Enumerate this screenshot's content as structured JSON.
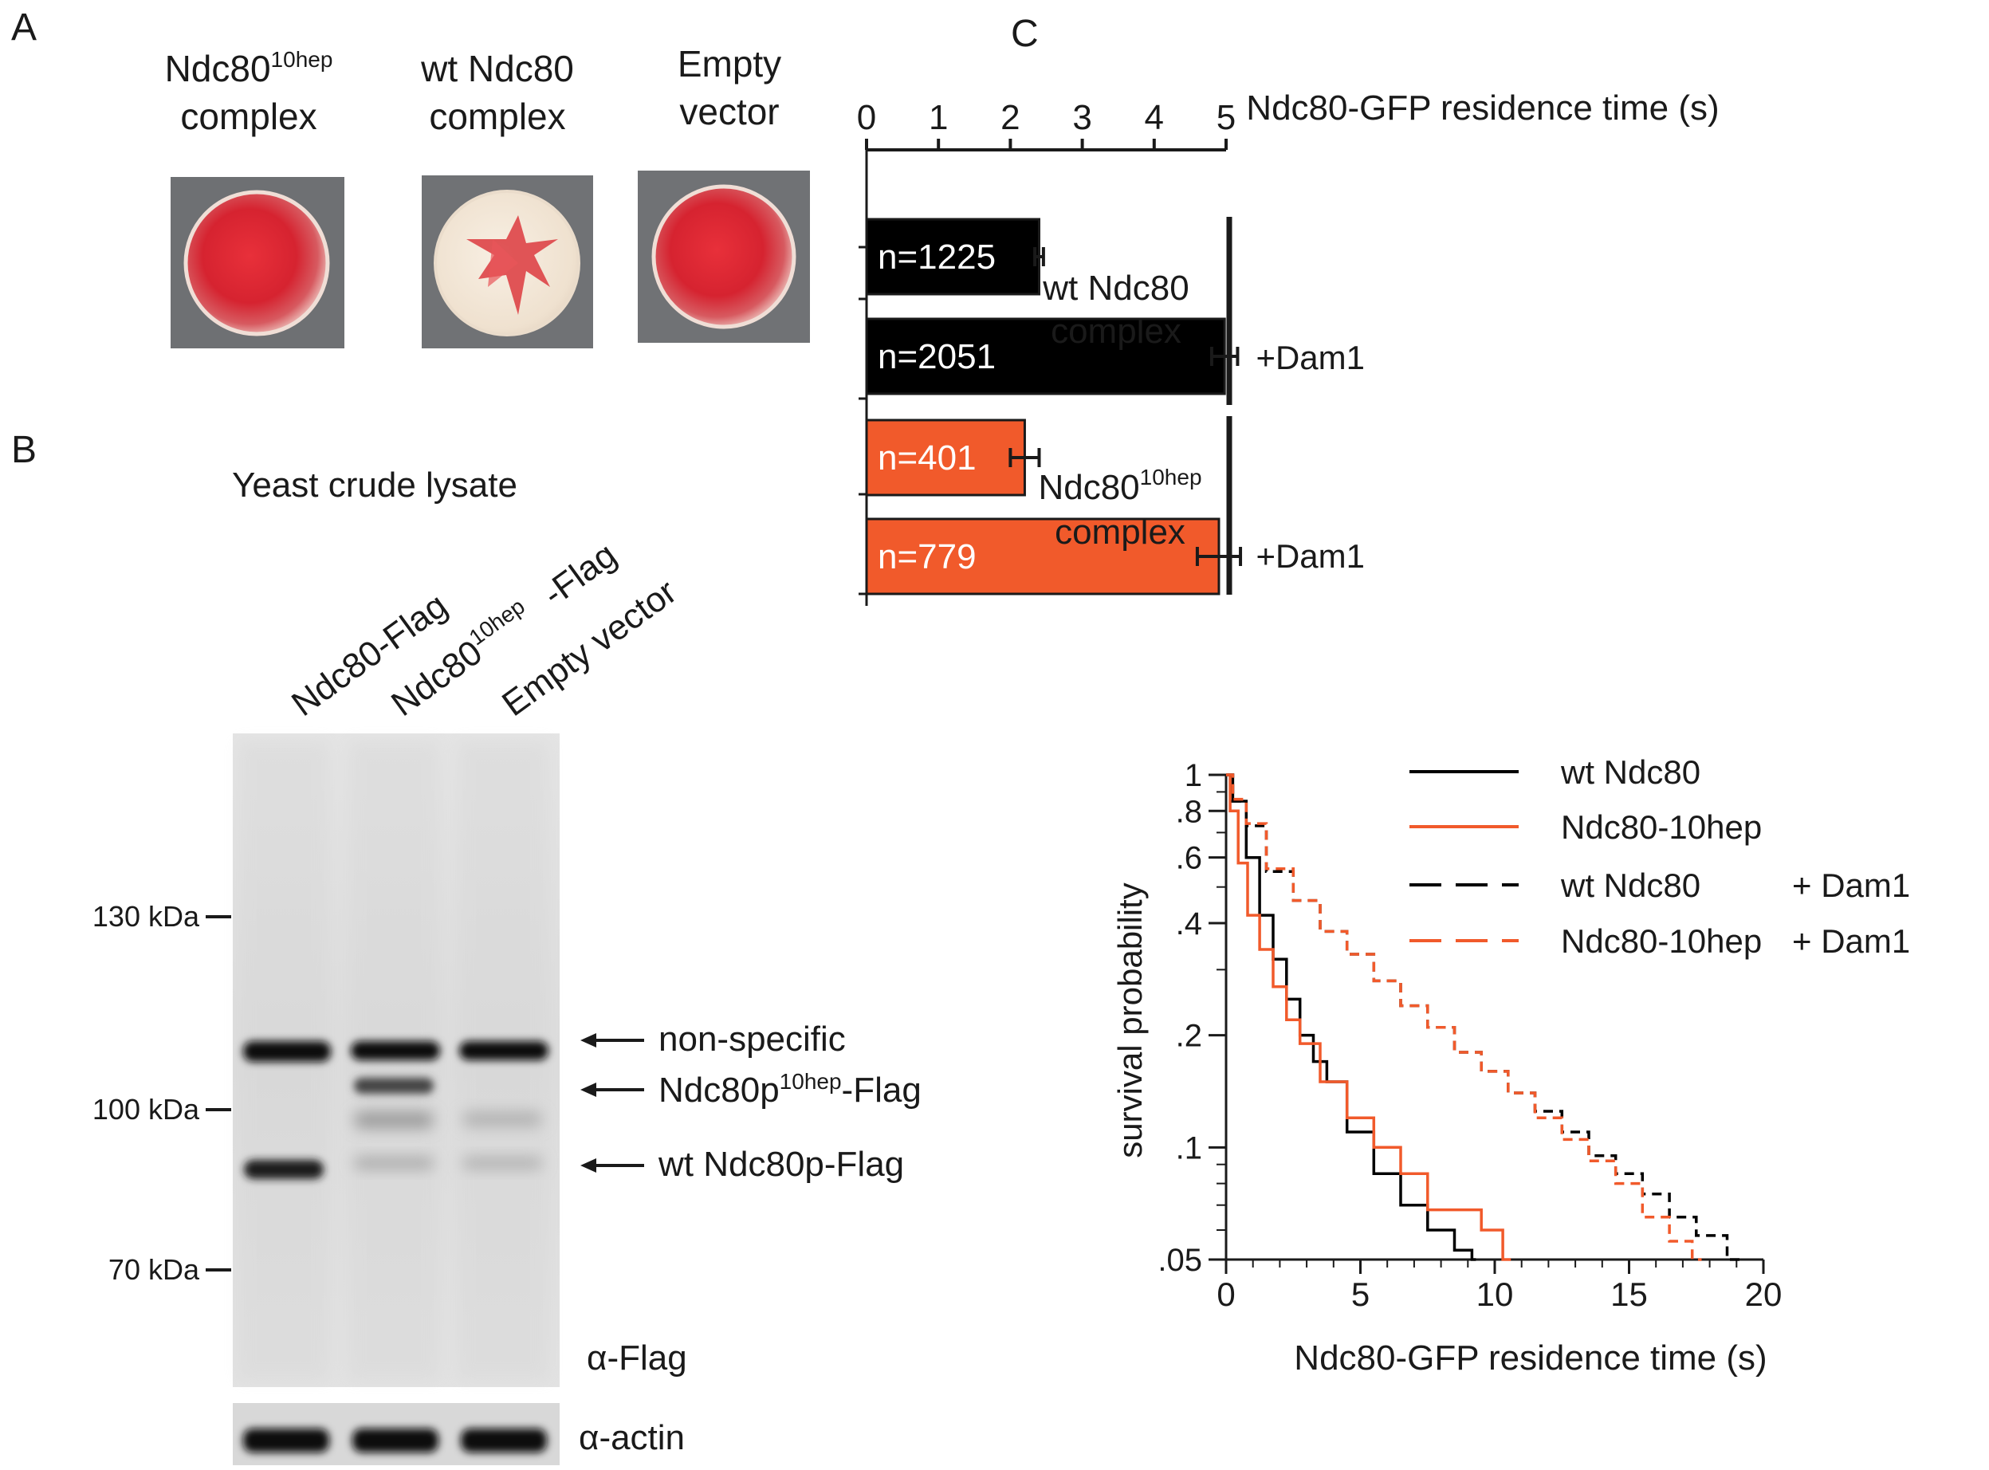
{
  "panels": {
    "a": {
      "letter": "A",
      "columns": [
        {
          "line1_base": "Ndc80",
          "line1_sup": "10hep",
          "line2": "complex",
          "colony_color": "#d8232f"
        },
        {
          "line1": "wt Ndc80",
          "line2": "complex",
          "colony_color": "#f3e6d4"
        },
        {
          "line1": "Empty",
          "line2": "vector",
          "colony_color": "#d42a30"
        }
      ]
    },
    "b": {
      "letter": "B",
      "title": "Yeast crude lysate",
      "lanes": [
        {
          "text": "Ndc80-Flag"
        },
        {
          "base": "Ndc80",
          "sup": "10hep",
          "suffix": "-Flag"
        },
        {
          "text": "Empty vector"
        }
      ],
      "markers": [
        "130 kDa",
        "100 kDa",
        "70 kDa"
      ],
      "band_labels": {
        "nonspecific": "non-specific",
        "mutant_base": "Ndc80p",
        "mutant_sup": "10hep",
        "mutant_suffix": "-Flag",
        "wt": "wt Ndc80p-Flag"
      },
      "antibody_main": "α-Flag",
      "antibody_loading": "α-actin"
    },
    "c": {
      "letter": "C",
      "bar_chart_title": "Ndc80-GFP residence time (s)",
      "group1": {
        "line1": "wt Ndc80",
        "line2": "complex"
      },
      "group2": {
        "line1_base": "Ndc80",
        "line1_sup": "10hep",
        "line2": "complex"
      },
      "dam1_label": "+Dam1",
      "colors": {
        "wt": "#000000",
        "mutant": "#f15a2b"
      }
    }
  },
  "chart_data": [
    {
      "type": "bar",
      "orientation": "horizontal",
      "title": "Ndc80-GFP residence time (s)",
      "xlim": [
        0,
        5
      ],
      "xticks": [
        "0",
        "1",
        "2",
        "3",
        "4",
        "5"
      ],
      "bars": [
        {
          "group": "wt Ndc80 complex",
          "condition": "",
          "value": 2.4,
          "error": 0.06,
          "label": "n=1225",
          "color": "#000000"
        },
        {
          "group": "wt Ndc80 complex",
          "condition": "+Dam1",
          "value": 4.98,
          "error": 0.18,
          "label": "n=2051",
          "color": "#000000"
        },
        {
          "group": "Ndc80 10hep complex",
          "condition": "",
          "value": 2.2,
          "error": 0.2,
          "label": "n=401",
          "color": "#f15a2b"
        },
        {
          "group": "Ndc80 10hep complex",
          "condition": "+Dam1",
          "value": 4.9,
          "error": 0.3,
          "label": "n=779",
          "color": "#f15a2b"
        }
      ]
    },
    {
      "type": "line",
      "yscale": "log",
      "xlabel": "Ndc80-GFP residence time (s)",
      "ylabel": "survival probability",
      "xlim": [
        0,
        20
      ],
      "ylim": [
        0.05,
        1
      ],
      "xticks": [
        "0",
        "5",
        "10",
        "15",
        "20"
      ],
      "yticks": [
        {
          "value": 1,
          "label": "1"
        },
        {
          "value": 0.8,
          "label": ".8"
        },
        {
          "value": 0.6,
          "label": ".6"
        },
        {
          "value": 0.4,
          "label": ".4"
        },
        {
          "value": 0.2,
          "label": ".2"
        },
        {
          "value": 0.1,
          "label": ".1"
        },
        {
          "value": 0.05,
          "label": ".05"
        }
      ],
      "legend": [
        {
          "name": "wt Ndc80",
          "extra": "",
          "color": "#000000",
          "dash": false
        },
        {
          "name": "Ndc80-10hep",
          "extra": "",
          "color": "#f15a2b",
          "dash": false
        },
        {
          "name": "wt Ndc80",
          "extra": "+ Dam1",
          "color": "#000000",
          "dash": true
        },
        {
          "name": "Ndc80-10hep",
          "extra": "+ Dam1",
          "color": "#f15a2b",
          "dash": true
        }
      ],
      "series": [
        {
          "name": "wt Ndc80",
          "color": "#000000",
          "dash": false,
          "x": [
            0,
            0.5,
            1,
            1.5,
            2,
            2.5,
            3,
            3.5,
            4,
            5,
            6,
            7,
            8,
            9,
            9.3
          ],
          "y": [
            1,
            0.85,
            0.6,
            0.42,
            0.32,
            0.25,
            0.2,
            0.17,
            0.15,
            0.11,
            0.085,
            0.07,
            0.06,
            0.053,
            0.05
          ]
        },
        {
          "name": "Ndc80-10hep",
          "color": "#f15a2b",
          "dash": false,
          "x": [
            0,
            0.3,
            0.6,
            1,
            1.5,
            2,
            2.5,
            3,
            4,
            5,
            6,
            7,
            8,
            9,
            10,
            10.6
          ],
          "y": [
            1,
            0.8,
            0.58,
            0.42,
            0.34,
            0.27,
            0.22,
            0.19,
            0.15,
            0.12,
            0.1,
            0.085,
            0.068,
            0.068,
            0.06,
            0.05
          ]
        },
        {
          "name": "wt Ndc80 + Dam1",
          "color": "#000000",
          "dash": true,
          "x": [
            0,
            0.5,
            1,
            2,
            3,
            4,
            5,
            6,
            7,
            8,
            9,
            10,
            11,
            12,
            13,
            14,
            15,
            16,
            17,
            18,
            19.3
          ],
          "y": [
            1,
            0.85,
            0.73,
            0.55,
            0.46,
            0.38,
            0.33,
            0.28,
            0.24,
            0.21,
            0.18,
            0.16,
            0.14,
            0.125,
            0.11,
            0.095,
            0.085,
            0.075,
            0.065,
            0.058,
            0.05
          ]
        },
        {
          "name": "Ndc80-10hep + Dam1",
          "color": "#f15a2b",
          "dash": true,
          "x": [
            0,
            0.5,
            1,
            2,
            3,
            4,
            5,
            6,
            7,
            8,
            9,
            10,
            11,
            12,
            13,
            14,
            15,
            16,
            17,
            17.7
          ],
          "y": [
            1,
            0.86,
            0.74,
            0.56,
            0.46,
            0.38,
            0.33,
            0.28,
            0.24,
            0.21,
            0.18,
            0.16,
            0.14,
            0.12,
            0.105,
            0.092,
            0.08,
            0.065,
            0.056,
            0.05
          ]
        }
      ]
    }
  ]
}
